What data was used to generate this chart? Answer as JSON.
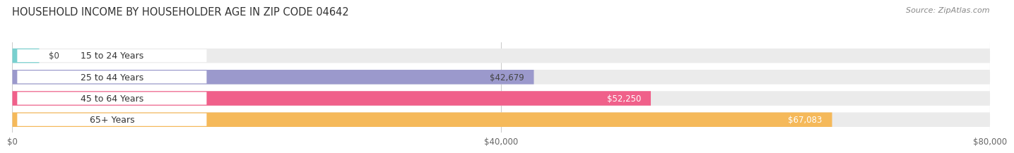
{
  "title": "HOUSEHOLD INCOME BY HOUSEHOLDER AGE IN ZIP CODE 04642",
  "source": "Source: ZipAtlas.com",
  "categories": [
    "15 to 24 Years",
    "25 to 44 Years",
    "45 to 64 Years",
    "65+ Years"
  ],
  "values": [
    0,
    42679,
    52250,
    67083
  ],
  "bar_colors": [
    "#79d0cf",
    "#9b99cc",
    "#f0608a",
    "#f5b95a"
  ],
  "value_label_colors": [
    "#444444",
    "#444444",
    "#ffffff",
    "#ffffff"
  ],
  "bg_color": "#ffffff",
  "bar_bg_color": "#ebebeb",
  "pill_bg_color": "#ffffff",
  "xlim": [
    0,
    80000
  ],
  "xticks": [
    0,
    40000,
    80000
  ],
  "xticklabels": [
    "$0",
    "$40,000",
    "$80,000"
  ],
  "title_fontsize": 10.5,
  "source_fontsize": 8,
  "cat_label_fontsize": 9,
  "val_label_fontsize": 8.5,
  "tick_fontsize": 8.5
}
